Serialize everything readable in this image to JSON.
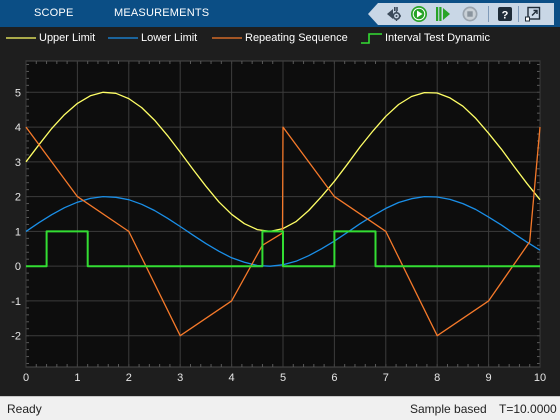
{
  "toolstrip": {
    "tabs": [
      {
        "label": "SCOPE"
      },
      {
        "label": "MEASUREMENTS"
      }
    ],
    "tools": [
      "settings-icon",
      "run-icon",
      "step-forward-icon",
      "stop-icon",
      "help-icon",
      "undock-icon"
    ],
    "colors": {
      "bar": "#0b4e85",
      "group": "#c9d7e6",
      "run": "#27a327"
    }
  },
  "legend": [
    {
      "label": "Upper Limit",
      "color": "#ffff66"
    },
    {
      "label": "Lower Limit",
      "color": "#1a8fe8"
    },
    {
      "label": "Repeating Sequence",
      "color": "#f5792a"
    },
    {
      "label": "Interval Test Dynamic",
      "color": "#33dd33"
    }
  ],
  "chart_data": {
    "type": "line",
    "xlim": [
      0,
      10
    ],
    "ylim": [
      -2.9,
      5.9
    ],
    "xticks": [
      "0",
      "1",
      "2",
      "3",
      "4",
      "5",
      "6",
      "7",
      "8",
      "9",
      "10"
    ],
    "yticks": [
      "-2",
      "-1",
      "0",
      "1",
      "2",
      "3",
      "4",
      "5"
    ],
    "grid": true,
    "colors": {
      "background": "#0d0d0d",
      "grid": "#3c3c3c",
      "tick_label": "#e6e6e6"
    },
    "series": [
      {
        "name": "Upper Limit",
        "color": "#ffff66",
        "x": [
          0,
          0.25,
          0.5,
          0.75,
          1,
          1.25,
          1.5,
          1.75,
          2,
          2.25,
          2.5,
          2.75,
          3,
          3.25,
          3.5,
          3.75,
          4,
          4.25,
          4.5,
          4.75,
          5,
          5.25,
          5.5,
          5.75,
          6,
          6.25,
          6.5,
          6.75,
          7,
          7.25,
          7.5,
          7.75,
          8,
          8.25,
          8.5,
          8.75,
          9,
          9.25,
          9.5,
          9.75,
          10
        ],
        "y": [
          3.0,
          3.49,
          3.96,
          4.36,
          4.68,
          4.9,
          5.0,
          4.97,
          4.82,
          4.56,
          4.2,
          3.76,
          3.28,
          2.78,
          2.3,
          1.85,
          1.49,
          1.22,
          1.05,
          1.0,
          1.08,
          1.28,
          1.6,
          2.0,
          2.44,
          2.93,
          3.43,
          3.89,
          4.31,
          4.65,
          4.88,
          4.99,
          4.98,
          4.84,
          4.6,
          4.25,
          3.82,
          3.36,
          2.86,
          2.37,
          1.91
        ]
      },
      {
        "name": "Lower Limit",
        "color": "#1a8fe8",
        "x": [
          0,
          0.25,
          0.5,
          0.75,
          1,
          1.25,
          1.5,
          1.75,
          2,
          2.25,
          2.5,
          2.75,
          3,
          3.25,
          3.5,
          3.75,
          4,
          4.25,
          4.5,
          4.75,
          5,
          5.25,
          5.5,
          5.75,
          6,
          6.25,
          6.5,
          6.75,
          7,
          7.25,
          7.5,
          7.75,
          8,
          8.25,
          8.5,
          8.75,
          9,
          9.25,
          9.5,
          9.75,
          10
        ],
        "y": [
          1.0,
          1.25,
          1.48,
          1.68,
          1.84,
          1.95,
          2.0,
          1.98,
          1.91,
          1.78,
          1.6,
          1.38,
          1.14,
          0.89,
          0.65,
          0.43,
          0.24,
          0.11,
          0.02,
          0.0,
          0.04,
          0.14,
          0.3,
          0.5,
          0.72,
          0.97,
          1.22,
          1.45,
          1.66,
          1.83,
          1.94,
          2.0,
          1.99,
          1.92,
          1.8,
          1.63,
          1.41,
          1.18,
          0.93,
          0.69,
          0.46
        ]
      },
      {
        "name": "Repeating Sequence",
        "color": "#f5792a",
        "x": [
          0,
          1,
          2,
          3,
          4,
          4.6,
          4.99,
          5,
          6,
          7,
          8,
          9,
          9.8,
          10
        ],
        "y": [
          4,
          2,
          1,
          -2,
          -1,
          0.6,
          0.95,
          4,
          2,
          1,
          -2,
          -1,
          0.7,
          4
        ]
      },
      {
        "name": "Interval Test Dynamic",
        "color": "#33dd33",
        "x": [
          0,
          0.4,
          0.4,
          1.2,
          1.2,
          4.6,
          4.6,
          5,
          5,
          6,
          6,
          6.8,
          6.8,
          10
        ],
        "y": [
          0,
          0,
          1,
          1,
          0,
          0,
          1,
          1,
          0,
          0,
          1,
          1,
          0,
          0
        ]
      }
    ]
  },
  "status": {
    "left": "Ready",
    "mode": "Sample based",
    "time": "T=10.0000"
  }
}
